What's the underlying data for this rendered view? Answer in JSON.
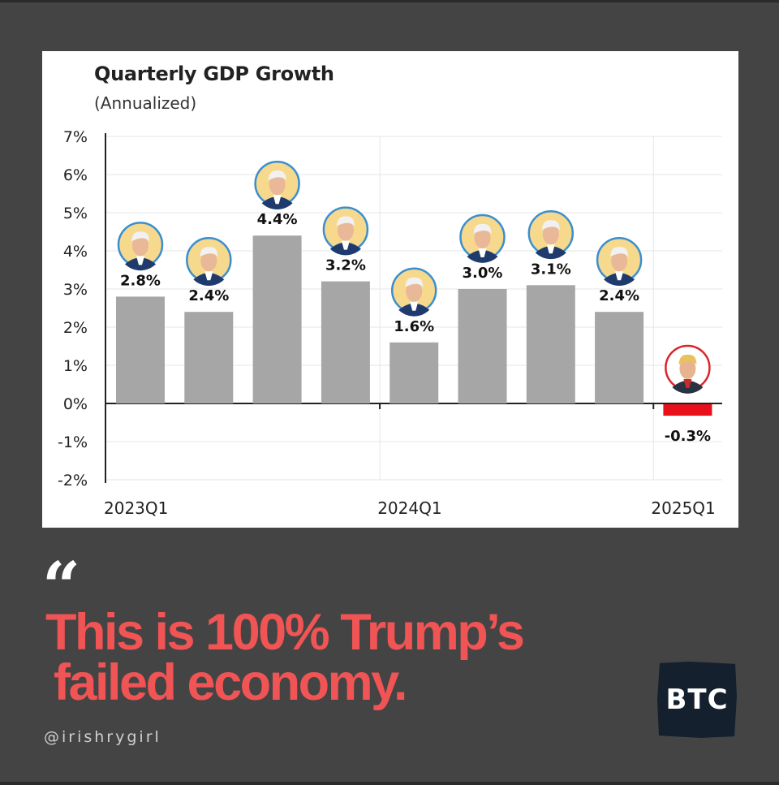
{
  "chart_data": {
    "type": "bar",
    "title": "Quarterly GDP Growth",
    "subtitle": "(Annualized)",
    "categories": [
      "2023Q1",
      "2023Q2",
      "2023Q3",
      "2023Q4",
      "2024Q1",
      "2024Q2",
      "2024Q3",
      "2024Q4",
      "2025Q1"
    ],
    "values": [
      2.8,
      2.4,
      4.4,
      3.2,
      1.6,
      3.0,
      3.1,
      2.4,
      -0.3
    ],
    "value_labels": [
      "2.8%",
      "2.4%",
      "4.4%",
      "3.2%",
      "1.6%",
      "3.0%",
      "3.1%",
      "2.4%",
      "-0.3%"
    ],
    "x_tick_labels": [
      "2023Q1",
      "2024Q1",
      "2025Q1"
    ],
    "y_ticks": [
      "7%",
      "6%",
      "5%",
      "4%",
      "3%",
      "2%",
      "1%",
      "0%",
      "-1%",
      "-2%"
    ],
    "ylim": [
      -2,
      7
    ],
    "grid": true,
    "bar_colors": {
      "positive": "#a6a6a6",
      "negative": "#e8101a"
    },
    "markers": [
      "biden-portrait",
      "biden-portrait",
      "biden-portrait",
      "biden-portrait",
      "biden-portrait",
      "biden-portrait",
      "biden-portrait",
      "biden-portrait",
      "trump-portrait"
    ]
  },
  "headline": {
    "line1": "This is 100% Trump’s",
    "line2": "failed economy."
  },
  "quote_mark": "“",
  "handle": "@irishrygirl",
  "badge": "BTC",
  "colors": {
    "background": "#444444",
    "headline": "#f05454",
    "biden_ring": "#3a8fd0",
    "trump_ring": "#d9262a",
    "badge_bg": "#14202e"
  }
}
